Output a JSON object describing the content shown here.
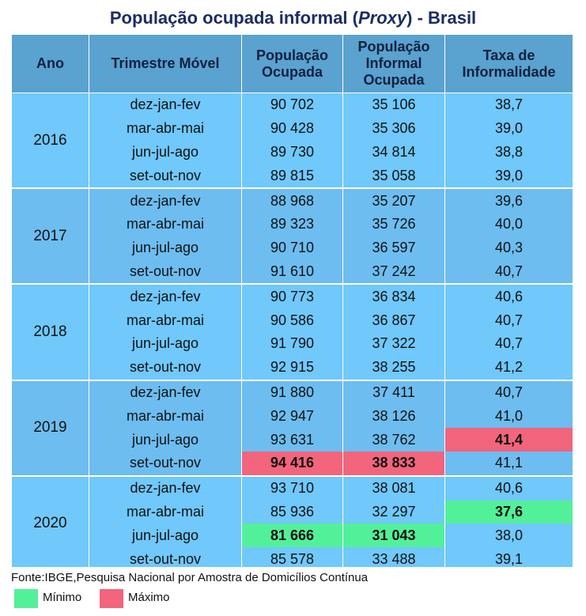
{
  "title": {
    "prefix": "População ocupada informal (",
    "italic": "Proxy",
    "suffix": ") - Brasil"
  },
  "headers": {
    "ano": "Ano",
    "trimestre": "Trimestre Móvel",
    "pop_ocupada": "População Ocupada",
    "pop_informal": "População Informal Ocupada",
    "taxa": "Taxa de Informalidade"
  },
  "rows": [
    {
      "year": "2016",
      "trimestre": "dez-jan-fev",
      "ocupada": "90 702",
      "informal": "35 106",
      "taxa": "38,7"
    },
    {
      "year": "2016",
      "trimestre": "mar-abr-mai",
      "ocupada": "90 428",
      "informal": "35 306",
      "taxa": "39,0"
    },
    {
      "year": "2016",
      "trimestre": "jun-jul-ago",
      "ocupada": "89 730",
      "informal": "34 814",
      "taxa": "38,8"
    },
    {
      "year": "2016",
      "trimestre": "set-out-nov",
      "ocupada": "89 815",
      "informal": "35 058",
      "taxa": "39,0"
    },
    {
      "year": "2017",
      "trimestre": "dez-jan-fev",
      "ocupada": "88 968",
      "informal": "35 207",
      "taxa": "39,6"
    },
    {
      "year": "2017",
      "trimestre": "mar-abr-mai",
      "ocupada": "89 323",
      "informal": "35 726",
      "taxa": "40,0"
    },
    {
      "year": "2017",
      "trimestre": "jun-jul-ago",
      "ocupada": "90 710",
      "informal": "36 597",
      "taxa": "40,3"
    },
    {
      "year": "2017",
      "trimestre": "set-out-nov",
      "ocupada": "91 610",
      "informal": "37 242",
      "taxa": "40,7"
    },
    {
      "year": "2018",
      "trimestre": "dez-jan-fev",
      "ocupada": "90 773",
      "informal": "36 834",
      "taxa": "40,6"
    },
    {
      "year": "2018",
      "trimestre": "mar-abr-mai",
      "ocupada": "90 586",
      "informal": "36 867",
      "taxa": "40,7"
    },
    {
      "year": "2018",
      "trimestre": "jun-jul-ago",
      "ocupada": "91 790",
      "informal": "37 322",
      "taxa": "40,7"
    },
    {
      "year": "2018",
      "trimestre": "set-out-nov",
      "ocupada": "92 915",
      "informal": "38 255",
      "taxa": "41,2"
    },
    {
      "year": "2019",
      "trimestre": "dez-jan-fev",
      "ocupada": "91 880",
      "informal": "37 411",
      "taxa": "40,7"
    },
    {
      "year": "2019",
      "trimestre": "mar-abr-mai",
      "ocupada": "92 947",
      "informal": "38 126",
      "taxa": "41,0"
    },
    {
      "year": "2019",
      "trimestre": "jun-jul-ago",
      "ocupada": "93 631",
      "informal": "38 762",
      "taxa": "41,4",
      "taxa_hl": "max"
    },
    {
      "year": "2019",
      "trimestre": "set-out-nov",
      "ocupada": "94 416",
      "informal": "38 833",
      "taxa": "41,1",
      "ocupada_hl": "max",
      "informal_hl": "max"
    },
    {
      "year": "2020",
      "trimestre": "dez-jan-fev",
      "ocupada": "93 710",
      "informal": "38 081",
      "taxa": "40,6"
    },
    {
      "year": "2020",
      "trimestre": "mar-abr-mai",
      "ocupada": "85 936",
      "informal": "32 297",
      "taxa": "37,6",
      "taxa_hl": "min"
    },
    {
      "year": "2020",
      "trimestre": "jun-jul-ago",
      "ocupada": "81 666",
      "informal": "31 043",
      "taxa": "38,0",
      "ocupada_hl": "min",
      "informal_hl": "min"
    },
    {
      "year": "2020",
      "trimestre": "set-out-nov",
      "ocupada": "85 578",
      "informal": "33 488",
      "taxa": "39,1"
    }
  ],
  "source": "Fonte:IBGE,Pesquisa Nacional por Amostra de Domicílios Contínua",
  "legend": {
    "min_label": "Mínimo",
    "max_label": "Máximo"
  },
  "colors": {
    "header_bg": "#5aa2cf",
    "row_bg_a": "#70c8fb",
    "row_bg_b": "#6dbdf0",
    "min": "#53f09a",
    "max": "#f2657c",
    "title": "#1b2d63"
  }
}
